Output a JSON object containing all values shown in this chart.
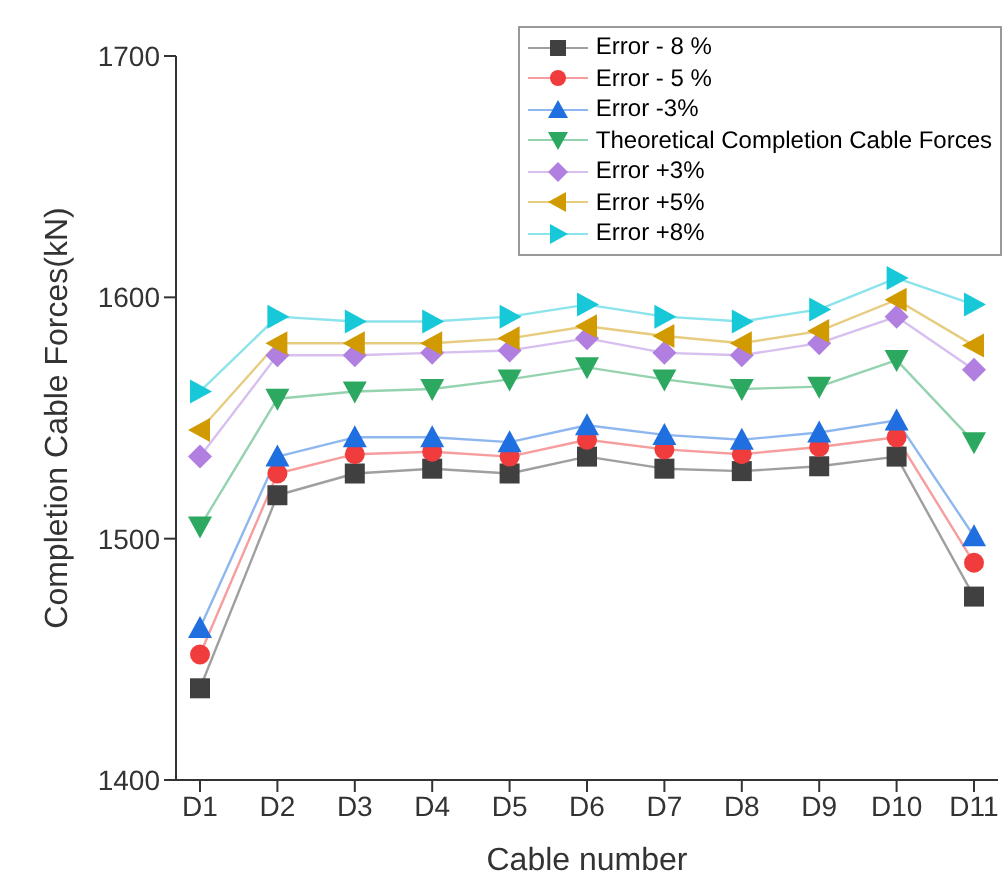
{
  "chart_data": {
    "type": "line",
    "xlabel": "Cable number",
    "ylabel": "Completion Cable Forces(kN)",
    "categories": [
      "D1",
      "D2",
      "D3",
      "D4",
      "D5",
      "D6",
      "D7",
      "D8",
      "D9",
      "D10",
      "D11"
    ],
    "ylim": [
      1400,
      1700
    ],
    "yticks": [
      1400,
      1500,
      1600,
      1700
    ],
    "grid": false,
    "legend": "top right",
    "series": [
      {
        "name": "Error - 8 %",
        "color": "#404040",
        "marker": "square",
        "values": [
          1438,
          1518,
          1527,
          1529,
          1527,
          1534,
          1529,
          1528,
          1530,
          1534,
          1476
        ]
      },
      {
        "name": "Error - 5 %",
        "color": "#f03c3c",
        "marker": "circle",
        "values": [
          1452,
          1527,
          1535,
          1536,
          1534,
          1541,
          1537,
          1535,
          1538,
          1542,
          1490
        ]
      },
      {
        "name": "Error -3%",
        "color": "#1f6fe0",
        "marker": "triangle",
        "values": [
          1463,
          1534,
          1542,
          1542,
          1540,
          1547,
          1543,
          1541,
          1544,
          1549,
          1501
        ]
      },
      {
        "name": "Theoretical Completion Cable Forces",
        "color": "#2ca860",
        "marker": "triangle-down",
        "values": [
          1505,
          1558,
          1561,
          1562,
          1566,
          1571,
          1566,
          1562,
          1563,
          1574,
          1540
        ]
      },
      {
        "name": "Error +3%",
        "color": "#b07fe0",
        "marker": "diamond",
        "values": [
          1534,
          1576,
          1576,
          1577,
          1578,
          1583,
          1577,
          1576,
          1581,
          1592,
          1570
        ]
      },
      {
        "name": "Error +5%",
        "color": "#d09a00",
        "marker": "triangle-left",
        "values": [
          1545,
          1581,
          1581,
          1581,
          1583,
          1588,
          1584,
          1581,
          1586,
          1599,
          1580
        ]
      },
      {
        "name": "Error +8%",
        "color": "#17c8d8",
        "marker": "triangle-right",
        "values": [
          1561,
          1592,
          1590,
          1590,
          1592,
          1597,
          1592,
          1590,
          1595,
          1608,
          1597
        ]
      }
    ]
  }
}
